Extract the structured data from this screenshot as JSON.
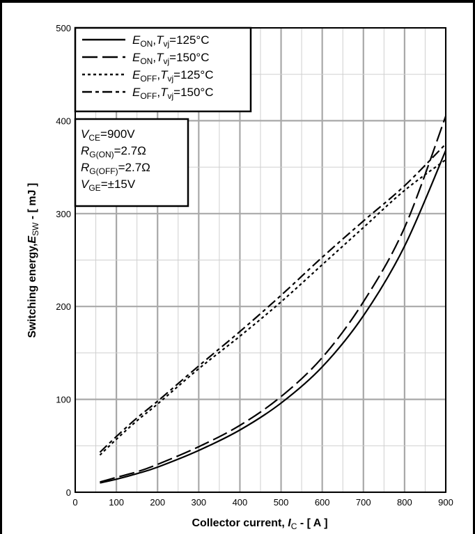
{
  "chart_data": {
    "type": "line",
    "xlabel": {
      "prefix": "Collector current, ",
      "sym": "I",
      "sub": "C",
      "suffix": " - [ A ]"
    },
    "ylabel": {
      "prefix": "Switching energy,",
      "sym": "E",
      "sub": "SW",
      "suffix": " - [ mJ ]"
    },
    "xlim": [
      0,
      900
    ],
    "ylim": [
      0,
      500
    ],
    "xticks": [
      0,
      100,
      200,
      300,
      400,
      500,
      600,
      700,
      800,
      900
    ],
    "yticks": [
      0,
      100,
      200,
      300,
      400,
      500
    ],
    "grid": true,
    "legend_position": "top-left",
    "series": [
      {
        "name": "EON,Tvj=125°C",
        "label_sym": "E",
        "label_sub": "ON",
        "label_temp": "=125°C",
        "dash": "solid",
        "x": [
          60,
          100,
          150,
          200,
          300,
          400,
          500,
          600,
          700,
          800,
          900
        ],
        "y": [
          10,
          14,
          20,
          27,
          45,
          67,
          96,
          135,
          190,
          265,
          368
        ]
      },
      {
        "name": "EON,Tvj=150°C",
        "label_sym": "E",
        "label_sub": "ON",
        "label_temp": "=150°C",
        "dash": "long",
        "x": [
          60,
          100,
          150,
          200,
          300,
          400,
          500,
          600,
          700,
          800,
          900
        ],
        "y": [
          11,
          16,
          22,
          30,
          49,
          72,
          103,
          145,
          205,
          285,
          405
        ]
      },
      {
        "name": "EOFF,Tvj=125°C",
        "label_sym": "E",
        "label_sub": "OFF",
        "label_temp": "=125°C",
        "dash": "dotted",
        "x": [
          60,
          100,
          150,
          200,
          300,
          400,
          500,
          600,
          700,
          800,
          900
        ],
        "y": [
          40,
          57,
          77,
          95,
          133,
          168,
          205,
          245,
          285,
          325,
          358
        ]
      },
      {
        "name": "EOFF,Tvj=150°C",
        "label_sym": "E",
        "label_sub": "OFF",
        "label_temp": "=150°C",
        "dash": "dashed",
        "x": [
          60,
          100,
          150,
          200,
          300,
          400,
          500,
          600,
          700,
          800,
          900
        ],
        "y": [
          43,
          60,
          80,
          98,
          136,
          173,
          212,
          253,
          292,
          330,
          375
        ]
      }
    ],
    "conditions": [
      {
        "sym": "V",
        "sub": "CE",
        "value": "=900V"
      },
      {
        "sym": "R",
        "sub": "G(ON)",
        "value": "=2.7Ω"
      },
      {
        "sym": "R",
        "sub": "G(OFF)",
        "value": "=2.7Ω"
      },
      {
        "sym": "V",
        "sub": "GE",
        "value": "=±15V"
      }
    ],
    "colors": {
      "line": "#000000",
      "grid": "#b0b0b0",
      "background": "#ffffff"
    }
  }
}
